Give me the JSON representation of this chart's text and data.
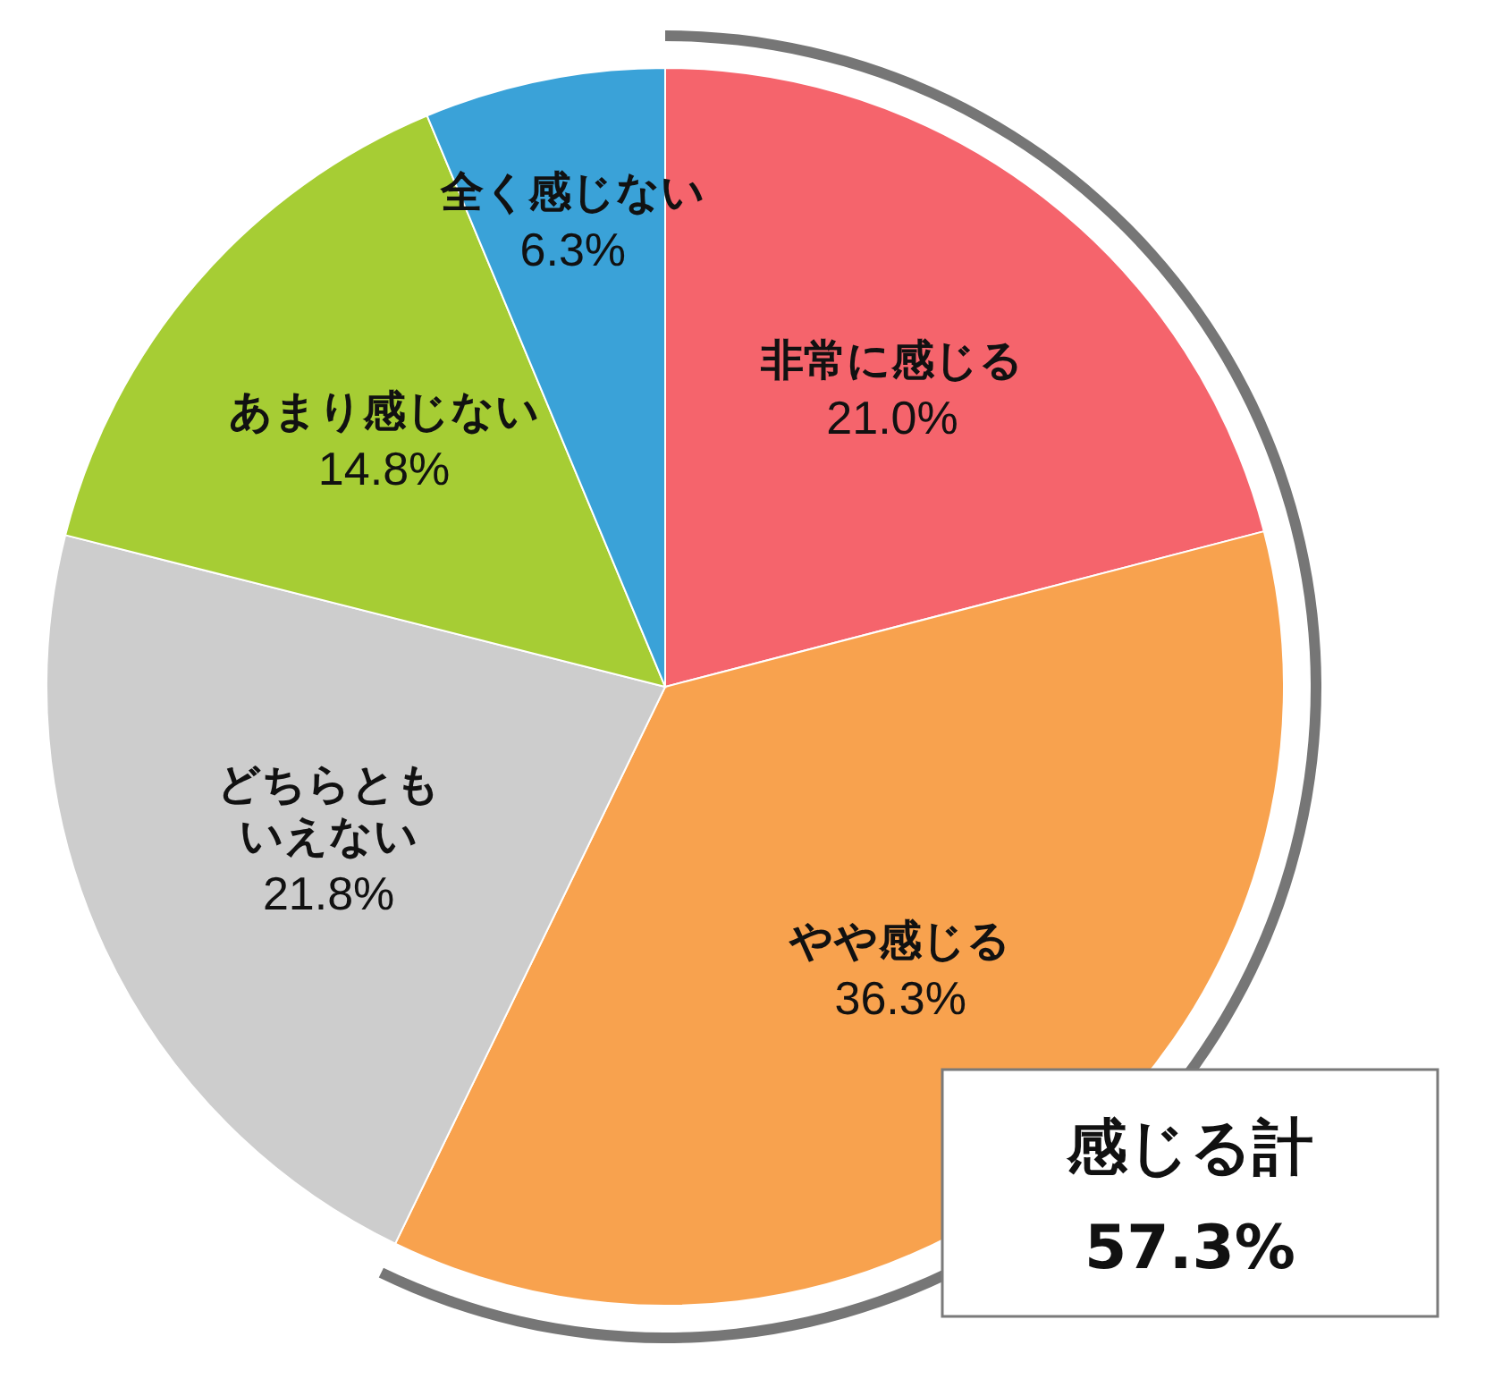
{
  "chart_data": {
    "type": "pie",
    "categories": [
      "非常に感じる",
      "やや感じる",
      "どちらともいえない",
      "あまり感じない",
      "全く感じない"
    ],
    "values": [
      21.0,
      36.3,
      21.8,
      14.8,
      6.3
    ],
    "value_labels": [
      "21.0%",
      "36.3%",
      "21.8%",
      "14.8%",
      "6.3%"
    ],
    "colors": [
      "#f5646c",
      "#f8a24e",
      "#cdcdcd",
      "#a6cd34",
      "#3aa2d8"
    ],
    "annotations": [
      "感じる計 57.3%"
    ]
  }
}
